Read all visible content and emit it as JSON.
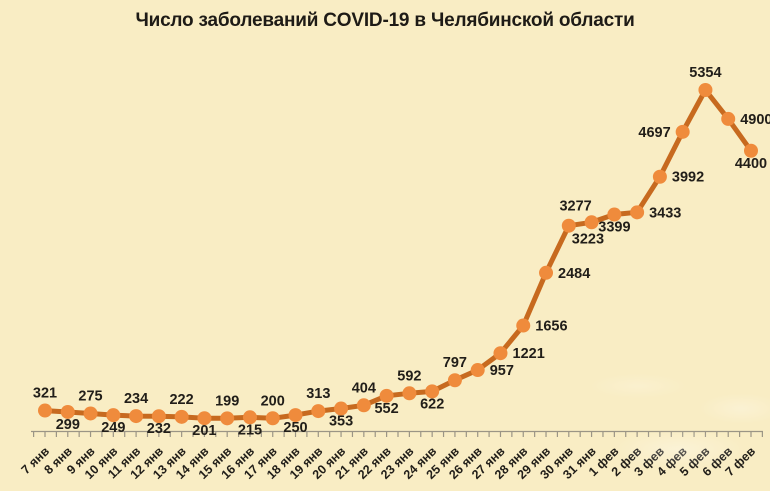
{
  "title": "Число заболеваний COVID-19 в Челябинской области",
  "colors": {
    "background": "#F9EDC4",
    "line": "#C76A1F",
    "marker": "#EF8B3C",
    "label_text": "#211E19",
    "title_text": "#1E1B16",
    "axis": "#9B9585"
  },
  "chart_data": {
    "type": "line",
    "title": "Число заболеваний COVID-19 в Челябинской области",
    "xlabel": "",
    "ylabel": "",
    "ylim": [
      0,
      5600
    ],
    "grid": false,
    "legend": "none",
    "marker_style": "circle",
    "x": [
      "7 янв",
      "8 янв",
      "9 янв",
      "10 янв",
      "11 янв",
      "12 янв",
      "13 янв",
      "14 янв",
      "15 янв",
      "16 янв",
      "17 янв",
      "18 янв",
      "19 янв",
      "20 янв",
      "21 янв",
      "22 янв",
      "23 янв",
      "24 янв",
      "25 янв",
      "26 янв",
      "27 янв",
      "28 янв",
      "29 янв",
      "30 янв",
      "31 янв",
      "1 фев",
      "2 фев",
      "3 фев",
      "4 фев",
      "5 фев",
      "6 фев",
      "7 фев"
    ],
    "values": [
      321,
      299,
      275,
      249,
      234,
      232,
      222,
      201,
      199,
      215,
      200,
      250,
      313,
      353,
      404,
      552,
      592,
      622,
      797,
      957,
      1221,
      1656,
      2484,
      3223,
      3277,
      3399,
      3433,
      3992,
      4697,
      5354,
      4900,
      4400
    ],
    "label_placements": [
      "above",
      "below",
      "above",
      "below",
      "above",
      "below",
      "above",
      "below",
      "above",
      "below",
      "above",
      "below",
      "above",
      "below",
      "above",
      "below",
      "above",
      "below",
      "above",
      "right",
      "right",
      "right",
      "right",
      "below-right",
      "above-left",
      "below",
      "right",
      "right",
      "left",
      "above",
      "right",
      "below"
    ]
  }
}
